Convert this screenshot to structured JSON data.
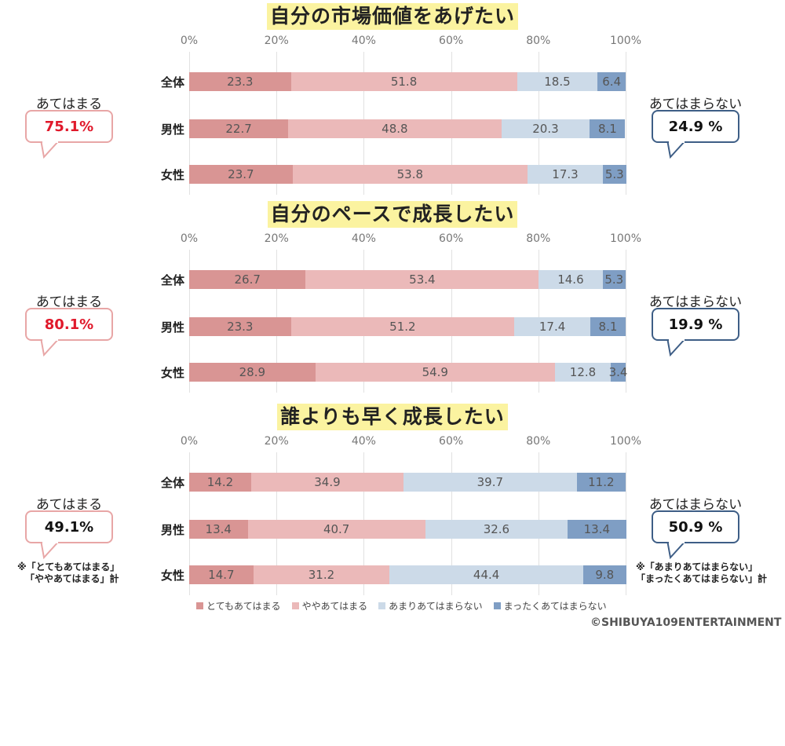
{
  "chart_data": [
    {
      "type": "bar",
      "orientation": "horizontal",
      "stacked": true,
      "title": "自分の市場価値をあげたい",
      "categories": [
        "全体",
        "男性",
        "女性"
      ],
      "series": [
        {
          "name": "とてもあてはまる",
          "values": [
            23.3,
            22.7,
            23.7
          ]
        },
        {
          "name": "ややあてはまる",
          "values": [
            51.8,
            48.8,
            53.8
          ]
        },
        {
          "name": "あまりあてはまらない",
          "values": [
            18.5,
            20.3,
            17.3
          ]
        },
        {
          "name": "まったくあてはまらない",
          "values": [
            6.4,
            8.1,
            5.3
          ]
        }
      ],
      "xlim": [
        0,
        100
      ],
      "x_ticks": [
        "0%",
        "20%",
        "40%",
        "60%",
        "80%",
        "100%"
      ],
      "grid": true,
      "agree": {
        "label": "あてはまる",
        "value": "75.1%"
      },
      "disagree": {
        "label": "あてはまらない",
        "value": "24.9 %"
      }
    },
    {
      "type": "bar",
      "orientation": "horizontal",
      "stacked": true,
      "title": "自分のペースで成長したい",
      "categories": [
        "全体",
        "男性",
        "女性"
      ],
      "series": [
        {
          "name": "とてもあてはまる",
          "values": [
            26.7,
            23.3,
            28.9
          ]
        },
        {
          "name": "ややあてはまる",
          "values": [
            53.4,
            51.2,
            54.9
          ]
        },
        {
          "name": "あまりあてはまらない",
          "values": [
            14.6,
            17.4,
            12.8
          ]
        },
        {
          "name": "まったくあてはまらない",
          "values": [
            5.3,
            8.1,
            3.4
          ]
        }
      ],
      "xlim": [
        0,
        100
      ],
      "x_ticks": [
        "0%",
        "20%",
        "40%",
        "60%",
        "80%",
        "100%"
      ],
      "grid": true,
      "agree": {
        "label": "あてはまる",
        "value": "80.1%"
      },
      "disagree": {
        "label": "あてはまらない",
        "value": "19.9 %"
      }
    },
    {
      "type": "bar",
      "orientation": "horizontal",
      "stacked": true,
      "title": "誰よりも早く成長したい",
      "categories": [
        "全体",
        "男性",
        "女性"
      ],
      "series": [
        {
          "name": "とてもあてはまる",
          "values": [
            14.2,
            13.4,
            14.7
          ]
        },
        {
          "name": "ややあてはまる",
          "values": [
            34.9,
            40.7,
            31.2
          ]
        },
        {
          "name": "あまりあてはまらない",
          "values": [
            39.7,
            32.6,
            44.4
          ]
        },
        {
          "name": "まったくあてはまらない",
          "values": [
            11.2,
            13.4,
            9.8
          ]
        }
      ],
      "xlim": [
        0,
        100
      ],
      "x_ticks": [
        "0%",
        "20%",
        "40%",
        "60%",
        "80%",
        "100%"
      ],
      "grid": true,
      "agree": {
        "label": "あてはまる",
        "value": "49.1%",
        "note": [
          "※「とてもあてはまる」",
          "「ややあてはまる」計"
        ]
      },
      "disagree": {
        "label": "あてはまらない",
        "value": "50.9 %",
        "note": [
          "※「あまりあてはまらない」",
          "「まったくあてはまらない」計"
        ]
      }
    }
  ],
  "series_colors": [
    "#d99594",
    "#ebb9b9",
    "#ccdae8",
    "#7f9ec4"
  ],
  "agree_color": "#e8a6a6",
  "agree_value_color": "#e0192b",
  "disagree_color": "#3e5e86",
  "legend": {
    "position": "bottom",
    "items": [
      "とてもあてはまる",
      "ややあてはまる",
      "あまりあてはまらない",
      "まったくあてはまらない"
    ]
  },
  "copyright": "©SHIBUYA109ENTERTAINMENT"
}
